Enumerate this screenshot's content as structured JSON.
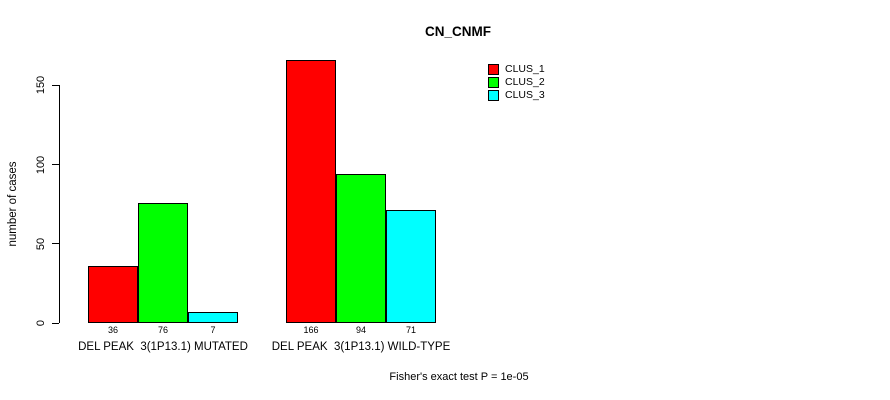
{
  "chart_data": {
    "type": "bar",
    "title": "CN_CNMF",
    "ylabel": "number of cases",
    "xlabel": "",
    "ylim": [
      0,
      166
    ],
    "yticks": [
      0,
      50,
      100,
      150
    ],
    "grid": false,
    "legend_position": "top-right-inside",
    "categories": [
      "DEL PEAK  3(1P13.1) MUTATED",
      "DEL PEAK  3(1P13.1) WILD-TYPE"
    ],
    "series": [
      {
        "name": "CLUS_1",
        "color": "#ff0000",
        "values": [
          36,
          166
        ]
      },
      {
        "name": "CLUS_2",
        "color": "#00ff00",
        "values": [
          76,
          94
        ]
      },
      {
        "name": "CLUS_3",
        "color": "#00ffff",
        "values": [
          7,
          71
        ]
      }
    ],
    "show_bar_values": true,
    "annotation": "Fisher's exact test P = 1e-05"
  },
  "colors": {
    "background": "#ffffff",
    "text": "#000000",
    "bar_border": "#000000",
    "clus_1": "#ff0000",
    "clus_2": "#00ff00",
    "clus_3": "#00ffff"
  }
}
